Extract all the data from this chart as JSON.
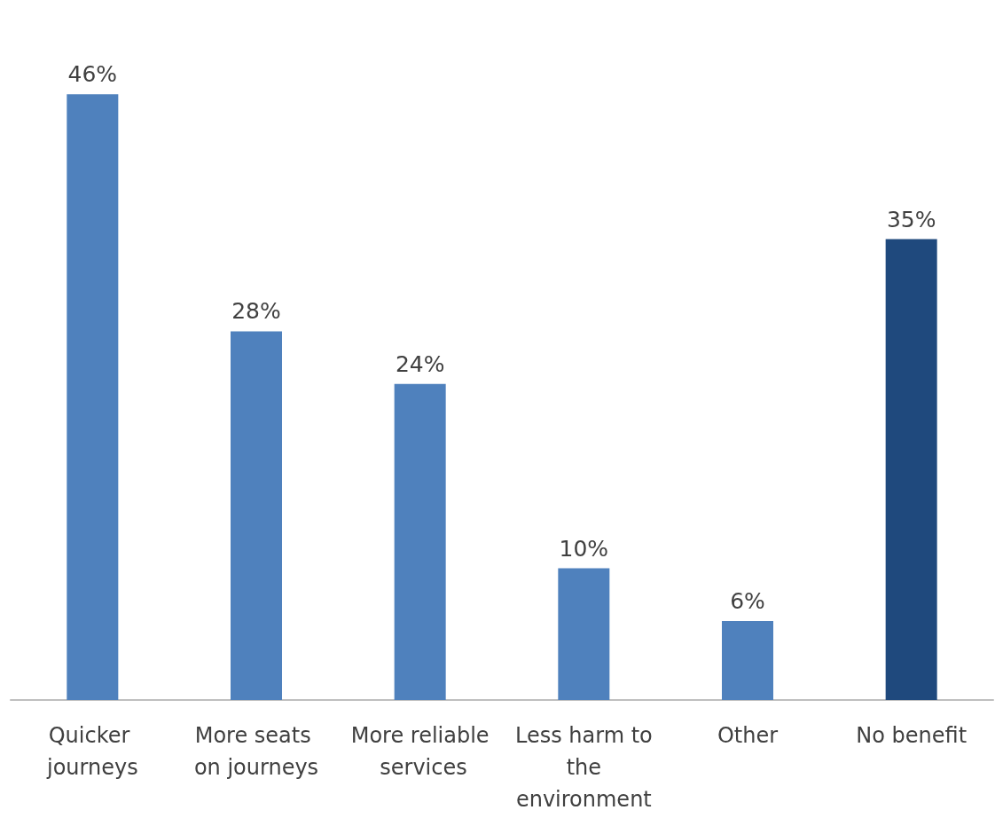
{
  "chart_data": {
    "type": "bar",
    "categories": [
      "Quicker journeys",
      "More seats on journeys",
      "More reliable services",
      "Less harm to the environment",
      "Other",
      "No benefit"
    ],
    "values": [
      46,
      28,
      24,
      10,
      6,
      35
    ],
    "colors": [
      "#4f81bd",
      "#4f81bd",
      "#4f81bd",
      "#4f81bd",
      "#4f81bd",
      "#1f497d"
    ],
    "value_labels": [
      "46%",
      "28%",
      "24%",
      "10%",
      "6%",
      "35%"
    ]
  }
}
